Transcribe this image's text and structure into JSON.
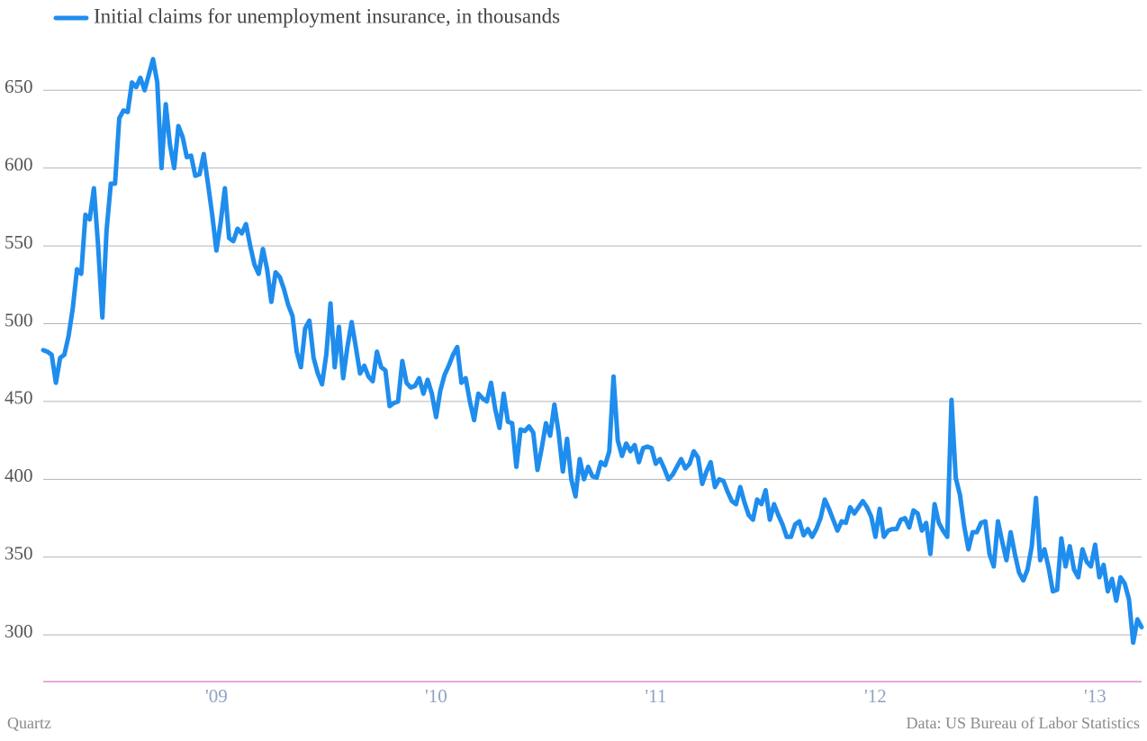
{
  "chart_data": {
    "type": "line",
    "credit": "Quartz",
    "source": "Data: US Bureau of Labor Statistics",
    "series": [
      {
        "name": "Initial claims for unemployment insurance, in thousands",
        "color": "#1f8ded",
        "values": [
          483,
          482,
          480,
          462,
          478,
          480,
          492,
          510,
          535,
          532,
          570,
          567,
          587,
          550,
          504,
          560,
          590,
          590,
          632,
          637,
          636,
          655,
          652,
          658,
          650,
          660,
          670,
          655,
          600,
          641,
          615,
          600,
          627,
          620,
          607,
          608,
          595,
          596,
          609,
          590,
          570,
          547,
          565,
          587,
          555,
          553,
          561,
          558,
          564,
          550,
          538,
          532,
          548,
          535,
          514,
          533,
          530,
          522,
          512,
          505,
          482,
          472,
          497,
          502,
          478,
          468,
          461,
          480,
          513,
          472,
          498,
          465,
          485,
          501,
          485,
          468,
          473,
          466,
          463,
          482,
          472,
          470,
          447,
          449,
          450,
          476,
          462,
          459,
          460,
          465,
          455,
          464,
          455,
          440,
          457,
          467,
          473,
          480,
          485,
          462,
          465,
          450,
          438,
          455,
          452,
          450,
          462,
          445,
          433,
          455,
          437,
          436,
          408,
          432,
          431,
          434,
          430,
          406,
          420,
          436,
          428,
          448,
          430,
          405,
          426,
          400,
          389,
          413,
          400,
          408,
          402,
          401,
          411,
          409,
          418,
          466,
          425,
          415,
          423,
          418,
          422,
          411,
          420,
          421,
          420,
          410,
          413,
          407,
          400,
          403,
          408,
          413,
          407,
          410,
          418,
          414,
          397,
          405,
          411,
          395,
          400,
          399,
          392,
          386,
          384,
          395,
          385,
          377,
          374,
          387,
          384,
          393,
          374,
          384,
          377,
          371,
          363,
          363,
          371,
          373,
          364,
          368,
          363,
          368,
          375,
          387,
          381,
          374,
          367,
          373,
          372,
          382,
          378,
          382,
          386,
          382,
          376,
          363,
          381,
          363,
          367,
          368,
          368,
          374,
          375,
          369,
          380,
          378,
          367,
          372,
          352,
          384,
          372,
          367,
          363,
          451,
          401,
          390,
          370,
          355,
          366,
          366,
          372,
          373,
          352,
          344,
          373,
          360,
          348,
          366,
          352,
          340,
          335,
          342,
          357,
          388,
          348,
          355,
          343,
          328,
          329,
          362,
          344,
          357,
          342,
          337,
          355,
          347,
          344,
          358,
          337,
          345,
          328,
          336,
          322,
          337,
          333,
          323,
          295,
          310,
          305
        ]
      }
    ],
    "categories": [
      null,
      null,
      null,
      null,
      null,
      null,
      null,
      null,
      null,
      null,
      null,
      null,
      null,
      null,
      null,
      null,
      null,
      null,
      null,
      null,
      null,
      null,
      null,
      null,
      null,
      null,
      null,
      null,
      null,
      null,
      null,
      null,
      null,
      null,
      null,
      null,
      null,
      null,
      null,
      null,
      null,
      "'09",
      null,
      null,
      null,
      null,
      null,
      null,
      null,
      null,
      null,
      null,
      null,
      null,
      null,
      null,
      null,
      null,
      null,
      null,
      null,
      null,
      null,
      null,
      null,
      null,
      null,
      null,
      null,
      null,
      null,
      null,
      null,
      null,
      null,
      null,
      null,
      null,
      null,
      null,
      null,
      null,
      null,
      null,
      null,
      null,
      null,
      null,
      null,
      null,
      null,
      null,
      null,
      "'10",
      null,
      null,
      null,
      null,
      null,
      null,
      null,
      null,
      null,
      null,
      null,
      null,
      null,
      null,
      null,
      null,
      null,
      null,
      null,
      null,
      null,
      null,
      null,
      null,
      null,
      null,
      null,
      null,
      null,
      null,
      null,
      null,
      null,
      null,
      null,
      null,
      null,
      null,
      null,
      null,
      null,
      null,
      null,
      null,
      null,
      null,
      null,
      null,
      null,
      null,
      null,
      "'11",
      null,
      null,
      null,
      null,
      null,
      null,
      null,
      null,
      null,
      null,
      null,
      null,
      null,
      null,
      null,
      null,
      null,
      null,
      null,
      null,
      null,
      null,
      null,
      null,
      null,
      null,
      null,
      null,
      null,
      null,
      null,
      null,
      null,
      null,
      null,
      null,
      null,
      null,
      null,
      null,
      null,
      null,
      null,
      null,
      null,
      null,
      null,
      null,
      null,
      null,
      null,
      "'12",
      null,
      null,
      null,
      null,
      null,
      null,
      null,
      null,
      null,
      null,
      null,
      null,
      null,
      null,
      null,
      null,
      null,
      null,
      null,
      null,
      null,
      null,
      null,
      null,
      null,
      null,
      null,
      null,
      null,
      null,
      null,
      null,
      null,
      null,
      null,
      null,
      null,
      null,
      null,
      null,
      null,
      null,
      null,
      null,
      null,
      null,
      null,
      null,
      null,
      null,
      null,
      "'13",
      null,
      null,
      null,
      null,
      null,
      null,
      null,
      null,
      null,
      null,
      null
    ],
    "ylim": [
      270,
      708
    ],
    "yticks": [
      300,
      350,
      400,
      450,
      500,
      550,
      600,
      650
    ],
    "grid": true
  }
}
